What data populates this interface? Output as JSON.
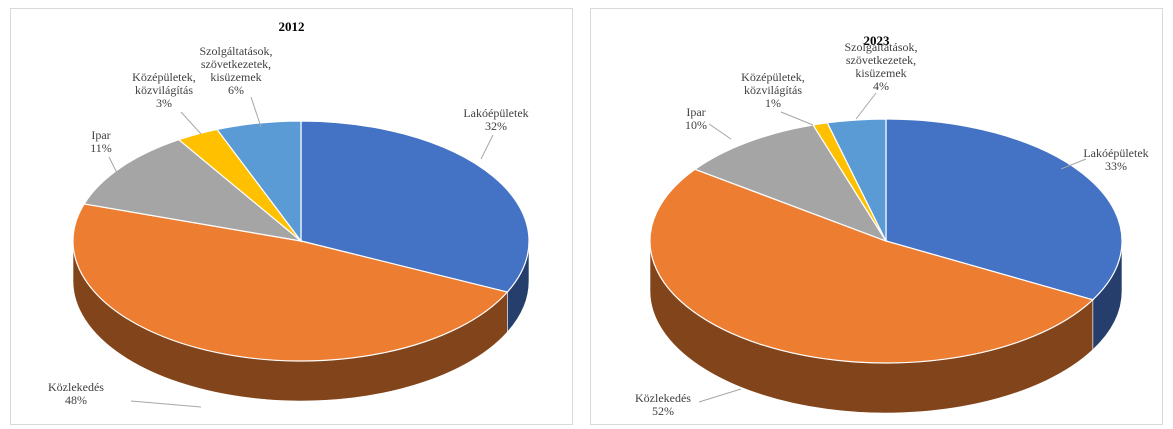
{
  "chart_data": [
    {
      "type": "pie3d",
      "title": "2012",
      "categories": [
        "Lakóépületek",
        "Közlekedés",
        "Ipar",
        "Középületek, közvilágítás",
        "Szolgáltatások, szövetkezetek, kisüzemek"
      ],
      "values": [
        32,
        48,
        11,
        3,
        6
      ],
      "value_labels": [
        "32%",
        "48%",
        "11%",
        "3%",
        "6%"
      ],
      "colors": [
        "#4472c4",
        "#ed7d31",
        "#a5a5a5",
        "#ffc000",
        "#5b9bd5"
      ]
    },
    {
      "type": "pie3d",
      "title": "2023",
      "categories": [
        "Lakóépületek",
        "Közlekedés",
        "Ipar",
        "Középületek, közvilágítás",
        "Szolgáltatások, szövetkezetek, kisüzemek"
      ],
      "values": [
        33,
        52,
        10,
        1,
        4
      ],
      "value_labels": [
        "33%",
        "52%",
        "10%",
        "1%",
        "4%"
      ],
      "colors": [
        "#4472c4",
        "#ed7d31",
        "#a5a5a5",
        "#ffc000",
        "#5b9bd5"
      ]
    }
  ]
}
